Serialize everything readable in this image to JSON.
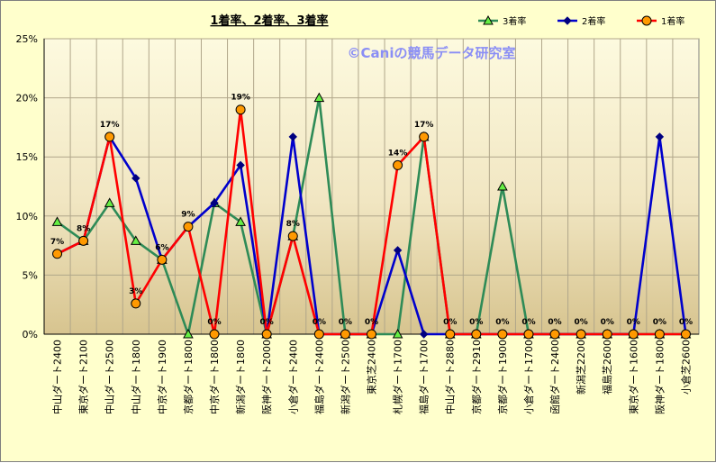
{
  "chart_data": {
    "type": "line",
    "title": "1着率、2着率、3着率",
    "watermark": "©Caniの競馬データ研究室",
    "categories": [
      "中山ダート2400",
      "東京ダート2100",
      "中山ダート2500",
      "中山ダート1800",
      "中京ダート1900",
      "京都ダート1800",
      "中京ダート1800",
      "新潟ダート1800",
      "阪神ダート2000",
      "小倉ダート2400",
      "福島ダート2400",
      "新潟ダート2500",
      "東京芝2400",
      "札幌ダート1700",
      "福島ダート1700",
      "中山ダート2880",
      "京都ダート2910",
      "京都ダート1900",
      "小倉ダート1700",
      "函館ダート2400",
      "新潟芝2200",
      "福島芝2600",
      "東京ダート1600",
      "阪神ダート1800",
      "小倉芝2600"
    ],
    "ylim": [
      0,
      25
    ],
    "yticks": [
      "0%",
      "5%",
      "10%",
      "15%",
      "20%",
      "25%"
    ],
    "legend_position": "top-right",
    "series": [
      {
        "name": "3着率",
        "color": "#2e8b57",
        "marker": "triangle",
        "values": [
          9.5,
          7.9,
          11.1,
          7.9,
          6.3,
          0,
          11.1,
          9.5,
          0,
          8.3,
          20.0,
          0,
          0,
          0,
          16.7,
          0,
          0,
          12.5,
          0,
          0,
          0,
          0,
          0,
          0,
          0
        ]
      },
      {
        "name": "2着率",
        "color": "#0000cc",
        "marker": "diamond",
        "values": [
          6.8,
          7.9,
          16.7,
          13.2,
          6.3,
          9.1,
          11.1,
          14.3,
          0,
          16.7,
          0,
          0,
          0,
          7.1,
          0,
          0,
          0,
          0,
          0,
          0,
          0,
          0,
          0,
          16.7,
          0
        ]
      },
      {
        "name": "1着率",
        "color": "#ff0000",
        "marker": "circle",
        "values": [
          6.8,
          7.9,
          16.7,
          2.6,
          6.3,
          9.1,
          0,
          19.0,
          0,
          8.3,
          0,
          0,
          0,
          14.3,
          16.7,
          0,
          0,
          0,
          0,
          0,
          0,
          0,
          0,
          0,
          0
        ]
      }
    ],
    "data_labels": [
      "7%",
      "8%",
      "17%",
      "3%",
      "6%",
      "9%",
      "0%",
      "19%",
      "0%",
      "8%",
      "0%",
      "0%",
      "0%",
      "14%",
      "17%",
      "0%",
      "0%",
      "0%",
      "0%",
      "0%",
      "0%",
      "0%",
      "0%",
      "0%",
      "0%"
    ]
  }
}
